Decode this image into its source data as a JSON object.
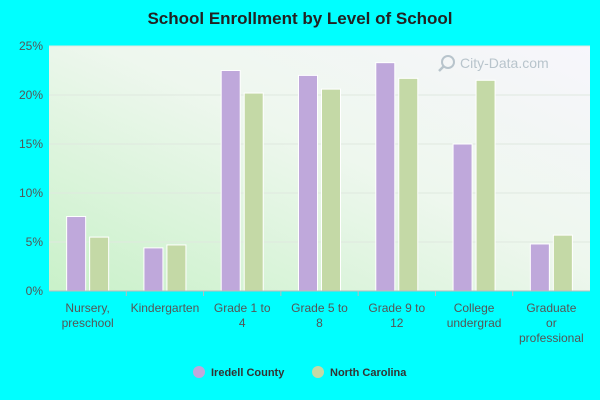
{
  "chart_data": {
    "type": "bar",
    "title": "School Enrollment by Level of School",
    "categories": [
      [
        "Nursery,",
        "preschool"
      ],
      [
        "Kindergarten"
      ],
      [
        "Grade 1 to",
        "4"
      ],
      [
        "Grade 5 to",
        "8"
      ],
      [
        "Grade 9 to",
        "12"
      ],
      [
        "College",
        "undergrad"
      ],
      [
        "Graduate",
        "or",
        "professional"
      ]
    ],
    "series": [
      {
        "name": "Iredell County",
        "color": "#bfa8db",
        "values": [
          7.6,
          4.4,
          22.5,
          22.0,
          23.3,
          15.0,
          4.8
        ]
      },
      {
        "name": "North Carolina",
        "color": "#c4d9a6",
        "values": [
          5.5,
          4.7,
          20.2,
          20.6,
          21.7,
          21.5,
          5.7
        ]
      }
    ],
    "ylim": [
      0,
      25
    ],
    "yticks": [
      0,
      5,
      10,
      15,
      20,
      25
    ],
    "tick_suffix": "%",
    "grid": true,
    "legend_position": "bottom-center",
    "watermark": "City-Data.com",
    "watermark_icon": "search-icon"
  }
}
